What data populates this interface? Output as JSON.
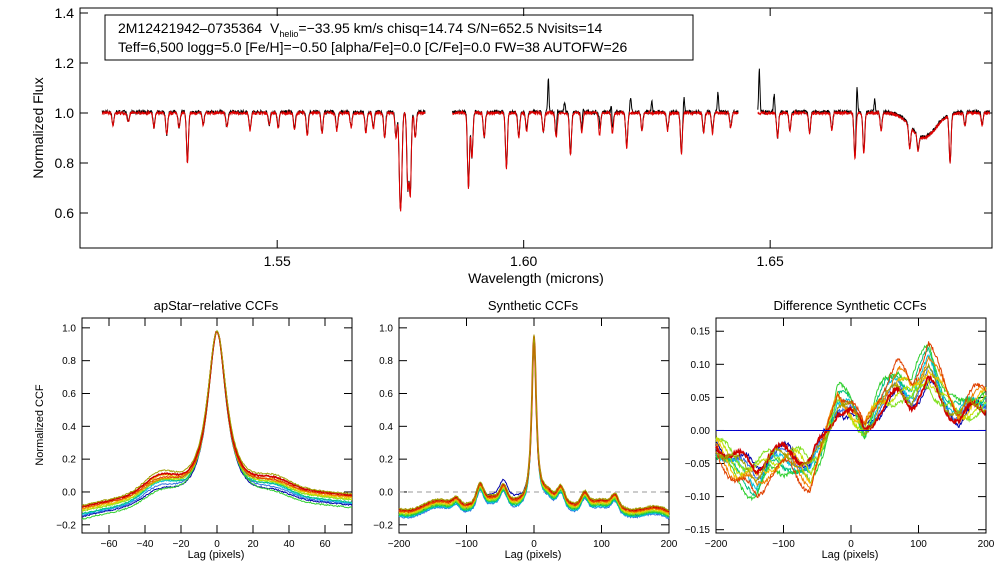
{
  "colors": {
    "observed": "#000000",
    "model": "#e00000",
    "zero_line": "#0000cc",
    "ccf_series": [
      "#0000aa",
      "#3070e0",
      "#00c0e0",
      "#00c080",
      "#30d030",
      "#80e020",
      "#c0e000",
      "#f0c000",
      "#f08000",
      "#e04000",
      "#d00000",
      "#a0a000"
    ]
  },
  "header": {
    "line1_star": "2M12421942–0735364",
    "line1_v": "V",
    "line1_vsub": "helio",
    "line1_rest": "=−33.95 km/s  chisq=14.74  S/N=652.5  Nvisits=14",
    "line2": "Teff=6,500 logg=5.0 [Fe/H]=−0.50 [alpha/Fe]=0.0 [C/Fe]=0.0 FW=38 AUTOFW=26"
  },
  "chart_data": [
    {
      "type": "line",
      "title": "",
      "xlabel": "Wavelength (microns)",
      "ylabel": "Normalized Flux",
      "xlim": [
        1.51,
        1.695
      ],
      "ylim": [
        0.46,
        1.42
      ],
      "xticks": [
        1.55,
        1.6,
        1.65
      ],
      "xtick_labels": [
        "1.55",
        "1.60",
        "1.65"
      ],
      "yticks": [
        0.6,
        0.8,
        1.0,
        1.2,
        1.4
      ],
      "ytick_labels": [
        "0.6",
        "0.8",
        "1.0",
        "1.2",
        "1.4"
      ],
      "chip_ranges": [
        [
          1.5145,
          1.58
        ],
        [
          1.5855,
          1.6435
        ],
        [
          1.6475,
          1.6945
        ]
      ],
      "absorption_lines": [
        {
          "x": 1.5167,
          "depth": 0.05
        },
        {
          "x": 1.5198,
          "depth": 0.04
        },
        {
          "x": 1.525,
          "depth": 0.06
        },
        {
          "x": 1.5276,
          "depth": 0.09
        },
        {
          "x": 1.5301,
          "depth": 0.06
        },
        {
          "x": 1.5318,
          "depth": 0.2
        },
        {
          "x": 1.535,
          "depth": 0.05
        },
        {
          "x": 1.5398,
          "depth": 0.06
        },
        {
          "x": 1.5445,
          "depth": 0.07
        },
        {
          "x": 1.5484,
          "depth": 0.05
        },
        {
          "x": 1.5502,
          "depth": 0.06
        },
        {
          "x": 1.5535,
          "depth": 0.07
        },
        {
          "x": 1.5561,
          "depth": 0.09
        },
        {
          "x": 1.5591,
          "depth": 0.08
        },
        {
          "x": 1.5621,
          "depth": 0.07
        },
        {
          "x": 1.565,
          "depth": 0.06
        },
        {
          "x": 1.568,
          "depth": 0.08
        },
        {
          "x": 1.5695,
          "depth": 0.06
        },
        {
          "x": 1.5718,
          "depth": 0.1
        },
        {
          "x": 1.5741,
          "depth": 0.1
        },
        {
          "x": 1.5749,
          "depth": 0.28
        },
        {
          "x": 1.5752,
          "depth": 0.24
        },
        {
          "x": 1.5765,
          "depth": 0.3
        },
        {
          "x": 1.577,
          "depth": 0.32
        },
        {
          "x": 1.578,
          "depth": 0.1
        },
        {
          "x": 1.5888,
          "depth": 0.3
        },
        {
          "x": 1.5895,
          "depth": 0.18
        },
        {
          "x": 1.592,
          "depth": 0.1
        },
        {
          "x": 1.5965,
          "depth": 0.22
        },
        {
          "x": 1.599,
          "depth": 0.1
        },
        {
          "x": 1.6006,
          "depth": 0.07
        },
        {
          "x": 1.604,
          "depth": 0.08
        },
        {
          "x": 1.6066,
          "depth": 0.1
        },
        {
          "x": 1.6095,
          "depth": 0.17
        },
        {
          "x": 1.6118,
          "depth": 0.08
        },
        {
          "x": 1.6154,
          "depth": 0.09
        },
        {
          "x": 1.618,
          "depth": 0.08
        },
        {
          "x": 1.6209,
          "depth": 0.14
        },
        {
          "x": 1.624,
          "depth": 0.07
        },
        {
          "x": 1.6292,
          "depth": 0.07
        },
        {
          "x": 1.632,
          "depth": 0.16
        },
        {
          "x": 1.6365,
          "depth": 0.08
        },
        {
          "x": 1.6383,
          "depth": 0.08
        },
        {
          "x": 1.642,
          "depth": 0.06
        },
        {
          "x": 1.6515,
          "depth": 0.1
        },
        {
          "x": 1.654,
          "depth": 0.07
        },
        {
          "x": 1.658,
          "depth": 0.08
        },
        {
          "x": 1.6625,
          "depth": 0.07
        },
        {
          "x": 1.6672,
          "depth": 0.18
        },
        {
          "x": 1.669,
          "depth": 0.16
        },
        {
          "x": 1.6725,
          "depth": 0.07
        },
        {
          "x": 1.6783,
          "depth": 0.09
        },
        {
          "x": 1.68,
          "depth": 0.06
        },
        {
          "x": 1.6865,
          "depth": 0.19
        },
        {
          "x": 1.6895,
          "depth": 0.05
        },
        {
          "x": 1.693,
          "depth": 0.05
        }
      ],
      "broad_features": [
        {
          "x": 1.6811,
          "depth": 0.1,
          "width": 0.0035
        }
      ],
      "emission_spikes": [
        {
          "x": 1.605,
          "height": 0.13
        },
        {
          "x": 1.6068,
          "height": 0.05
        },
        {
          "x": 1.6083,
          "height": 0.04
        },
        {
          "x": 1.612,
          "height": 0.05
        },
        {
          "x": 1.6153,
          "height": 0.06
        },
        {
          "x": 1.6178,
          "height": 0.07
        },
        {
          "x": 1.6217,
          "height": 0.06
        },
        {
          "x": 1.626,
          "height": 0.05
        },
        {
          "x": 1.6325,
          "height": 0.06
        },
        {
          "x": 1.6394,
          "height": 0.08
        },
        {
          "x": 1.6478,
          "height": 0.17
        },
        {
          "x": 1.6508,
          "height": 0.07
        },
        {
          "x": 1.6676,
          "height": 0.12
        },
        {
          "x": 1.6712,
          "height": 0.05
        }
      ]
    },
    {
      "type": "line",
      "title": "apStar−relative CCFs",
      "xlabel": "Lag (pixels)",
      "ylabel": "Normalized CCF",
      "xlim": [
        -75,
        75
      ],
      "ylim": [
        -0.25,
        1.06
      ],
      "xticks": [
        -60,
        -40,
        -20,
        0,
        20,
        40,
        60
      ],
      "xtick_labels": [
        "−60",
        "−40",
        "−20",
        "0",
        "20",
        "40",
        "60"
      ],
      "yticks": [
        -0.2,
        0.0,
        0.2,
        0.4,
        0.6,
        0.8,
        1.0
      ],
      "ytick_labels": [
        "−0.2",
        "0.0",
        "0.2",
        "0.4",
        "0.6",
        "0.8",
        "1.0"
      ],
      "series_count": 12,
      "peak_lag": 0,
      "peak_value": 1.0,
      "peak_width": 6,
      "wing_value": 0.0,
      "bumps": [
        {
          "lag": -32,
          "value": 0.07
        },
        {
          "lag": 32,
          "value": 0.04
        }
      ],
      "edge_values": [
        -0.12,
        -0.05
      ]
    },
    {
      "type": "line",
      "title": "Synthetic CCFs",
      "xlabel": "Lag (pixels)",
      "ylabel": "",
      "xlim": [
        -200,
        200
      ],
      "ylim": [
        -0.25,
        1.06
      ],
      "xticks": [
        -200,
        -100,
        0,
        100,
        200
      ],
      "xtick_labels": [
        "−200",
        "−100",
        "0",
        "100",
        "200"
      ],
      "yticks": [
        -0.2,
        0.0,
        0.2,
        0.4,
        0.6,
        0.8,
        1.0
      ],
      "ytick_labels": [
        "−0.2",
        "0.0",
        "0.2",
        "0.4",
        "0.6",
        "0.8",
        "1.0"
      ],
      "series_count": 12,
      "reference_line": 0.0,
      "peak_lag": 0,
      "peak_value": 1.0,
      "peak_width": 4,
      "bumps": [
        {
          "lag": -160,
          "value": 0.0
        },
        {
          "lag": -115,
          "value": 0.04
        },
        {
          "lag": -80,
          "value": 0.1
        },
        {
          "lag": -45,
          "value": 0.08
        },
        {
          "lag": 20,
          "value": 0.02
        },
        {
          "lag": 40,
          "value": 0.08
        },
        {
          "lag": 75,
          "value": 0.07
        },
        {
          "lag": 120,
          "value": 0.06
        }
      ],
      "edge_values": [
        -0.1,
        -0.12
      ]
    },
    {
      "type": "line",
      "title": "Difference Synthetic CCFs",
      "xlabel": "Lag (pixels)",
      "ylabel": "",
      "xlim": [
        -200,
        200
      ],
      "ylim": [
        -0.155,
        0.17
      ],
      "xticks": [
        -200,
        -100,
        0,
        100,
        200
      ],
      "xtick_labels": [
        "−200",
        "−100",
        "0",
        "100",
        "200"
      ],
      "yticks": [
        -0.15,
        -0.1,
        -0.05,
        0.0,
        0.05,
        0.1,
        0.15
      ],
      "ytick_labels": [
        "−0.15",
        "−0.10",
        "−0.05",
        "0.00",
        "0.05",
        "0.10",
        "0.15"
      ],
      "series_count": 12,
      "reference_line": 0.0,
      "trend": [
        [
          -200,
          -0.03
        ],
        [
          -170,
          -0.07
        ],
        [
          -140,
          -0.09
        ],
        [
          -120,
          -0.06
        ],
        [
          -90,
          -0.05
        ],
        [
          -60,
          -0.08
        ],
        [
          -40,
          -0.02
        ],
        [
          -20,
          0.06
        ],
        [
          0,
          0.04
        ],
        [
          20,
          0.0
        ],
        [
          40,
          0.05
        ],
        [
          70,
          0.09
        ],
        [
          90,
          0.07
        ],
        [
          115,
          0.12
        ],
        [
          140,
          0.06
        ],
        [
          160,
          0.03
        ],
        [
          180,
          0.05
        ],
        [
          200,
          0.06
        ]
      ]
    }
  ]
}
